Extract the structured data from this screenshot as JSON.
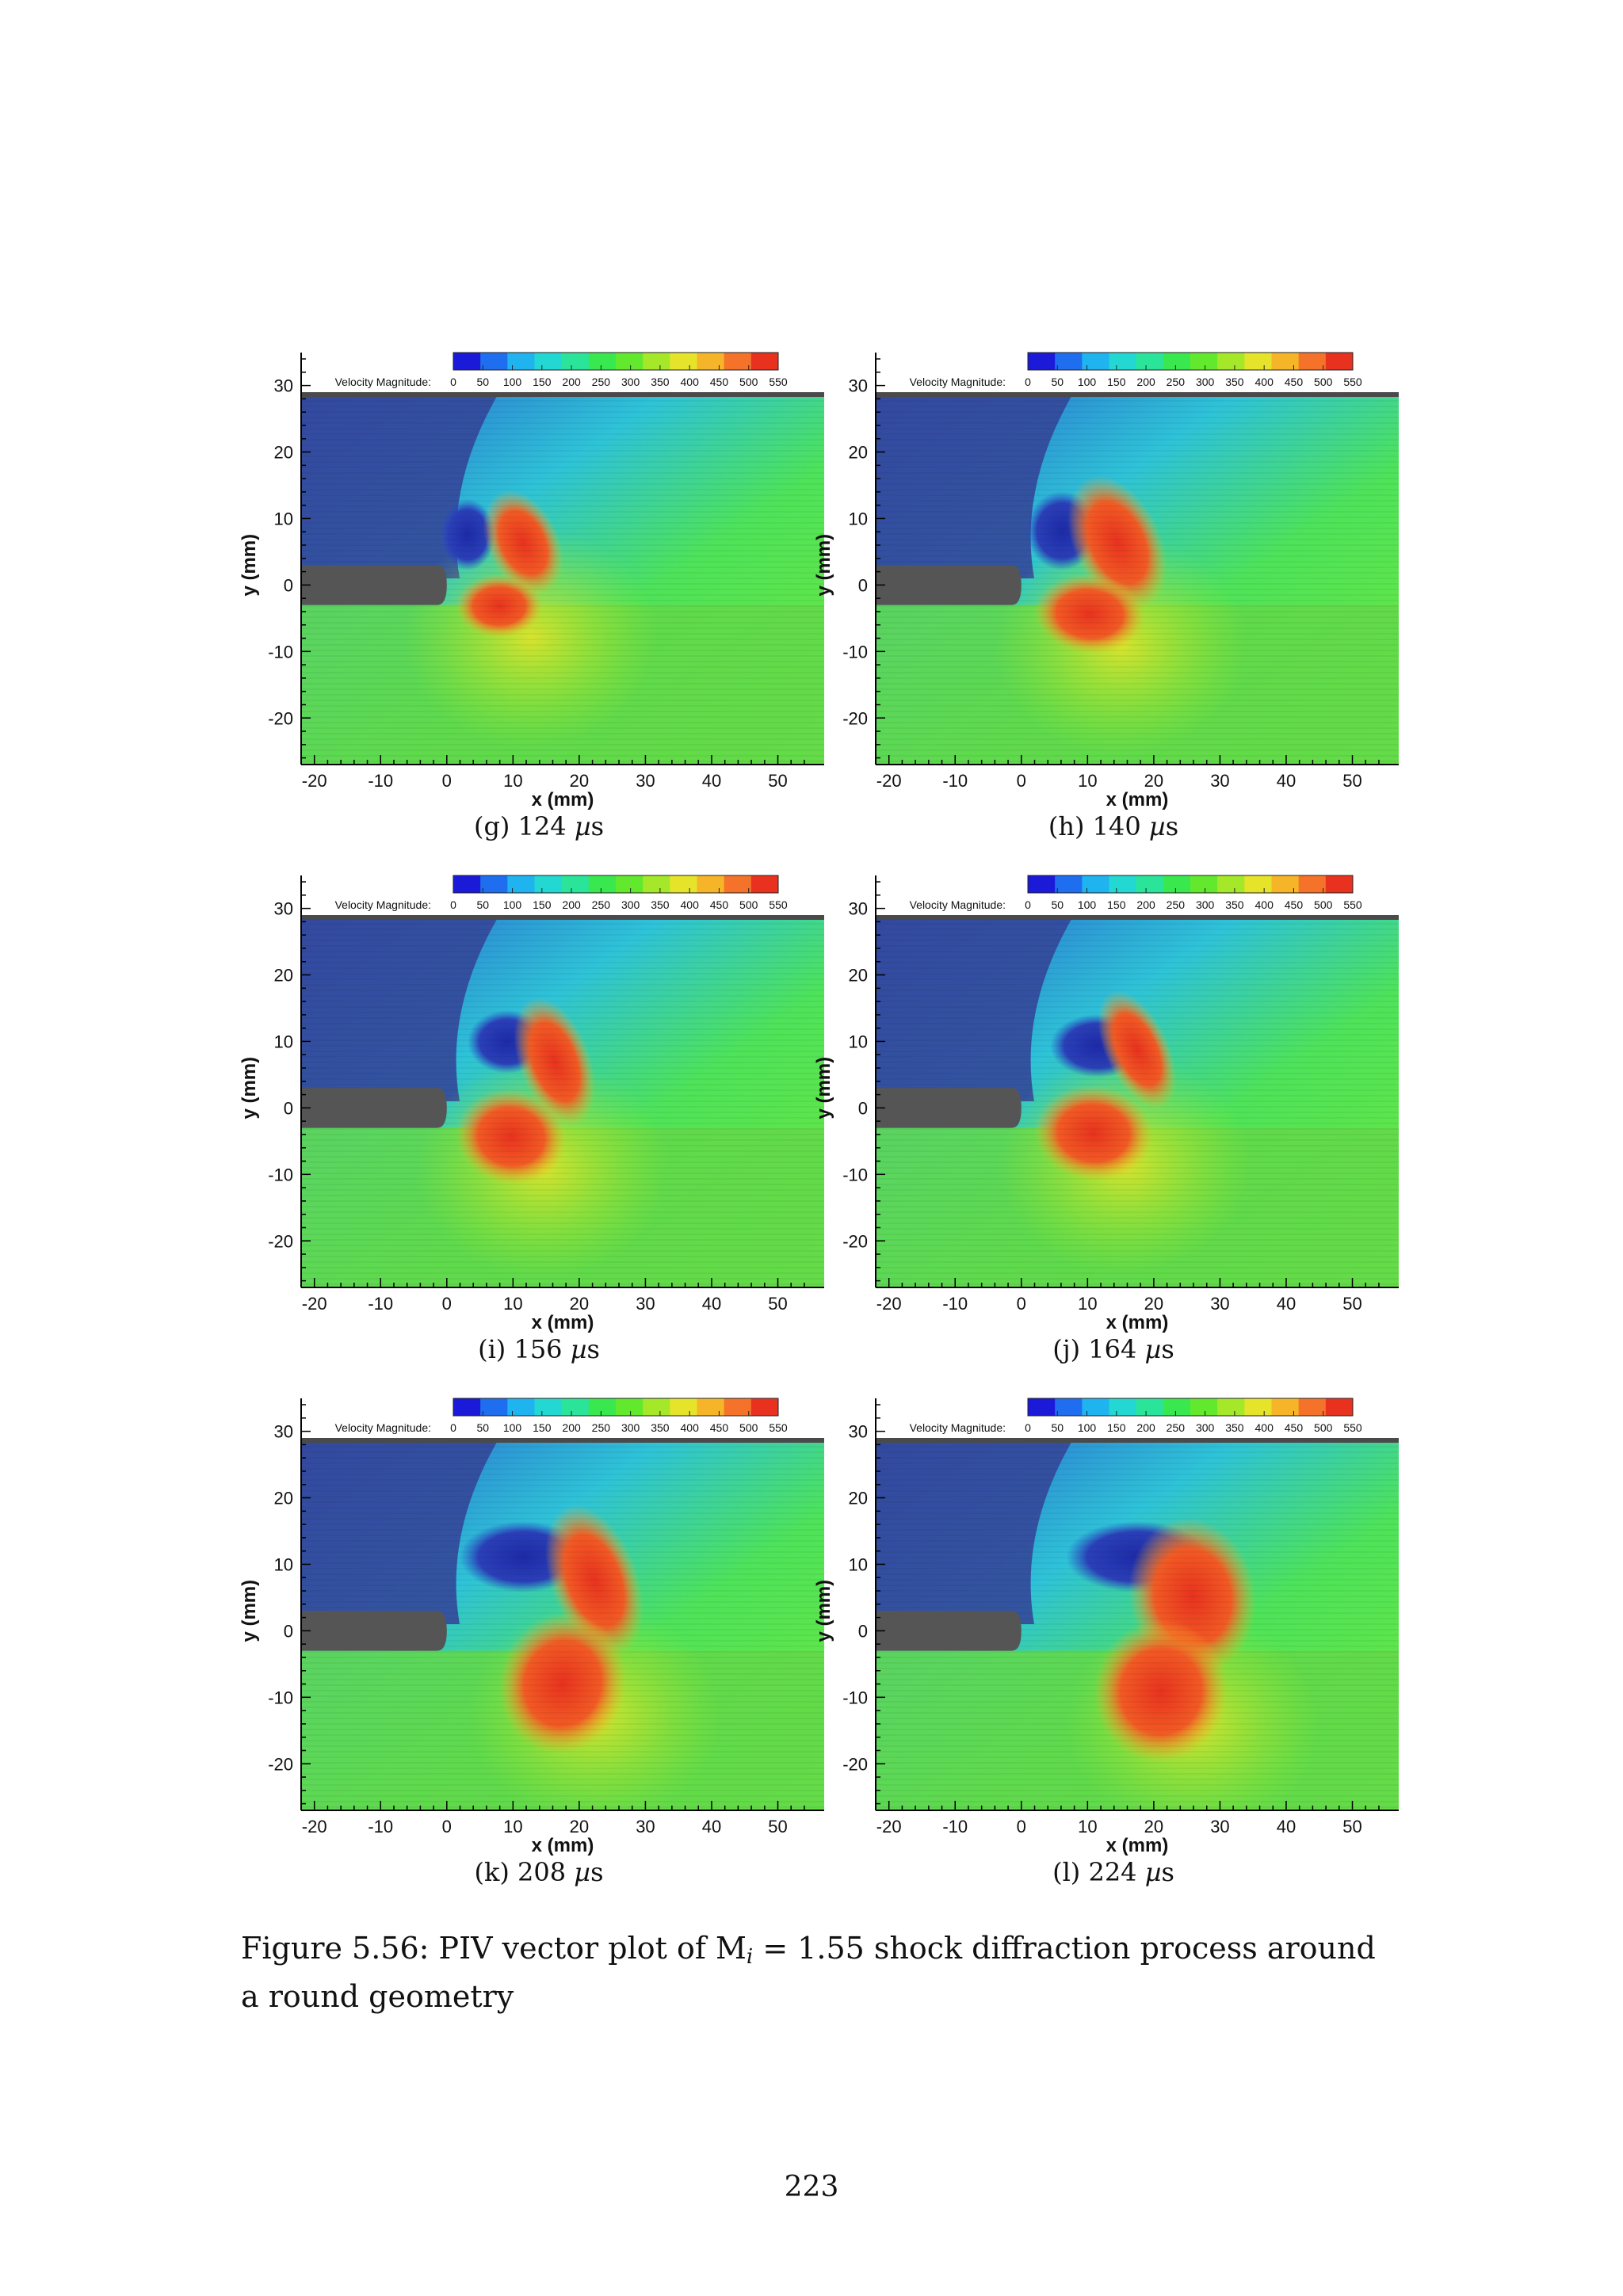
{
  "colorbar": {
    "label": "Velocity Magnitude:",
    "ticks": [
      "0",
      "50",
      "100",
      "150",
      "200",
      "250",
      "300",
      "350",
      "400",
      "450",
      "500",
      "550"
    ],
    "colors": [
      "#1a1ad8",
      "#1f6ef0",
      "#1fb4f0",
      "#23d8d2",
      "#2ae49a",
      "#39e84f",
      "#62e82c",
      "#a4e829",
      "#e6e42a",
      "#f6b528",
      "#f5722a",
      "#e8321f"
    ]
  },
  "axes": {
    "xlabel": "x (mm)",
    "ylabel": "y (mm)",
    "xticks": [
      "-20",
      "-10",
      "0",
      "10",
      "20",
      "30",
      "40",
      "50"
    ],
    "yticks": [
      "30",
      "20",
      "10",
      "0",
      "-10",
      "-20"
    ],
    "xrange": [
      -22,
      57
    ],
    "yrange": [
      -27,
      29
    ]
  },
  "panels": [
    {
      "letter": "(g)",
      "time": "124",
      "unit": "s"
    },
    {
      "letter": "(h)",
      "time": "140",
      "unit": "s"
    },
    {
      "letter": "(i)",
      "time": "156",
      "unit": "s"
    },
    {
      "letter": "(j)",
      "time": "164",
      "unit": "s"
    },
    {
      "letter": "(k)",
      "time": "208",
      "unit": "s"
    },
    {
      "letter": "(l)",
      "time": "224",
      "unit": "s"
    }
  ],
  "mu_symbol": "µ",
  "figure_caption": {
    "prefix": "Figure 5.56: PIV vector plot of M",
    "subscript": "i",
    "suffix": " = 1.55 shock diffraction process around a round geometry"
  },
  "page_number": "223"
}
